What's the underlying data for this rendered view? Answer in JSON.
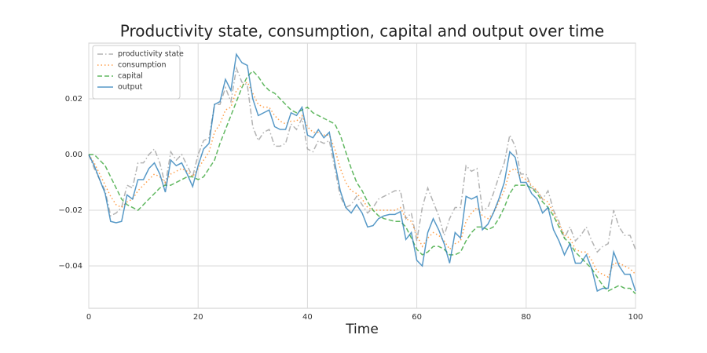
{
  "chart_data": {
    "type": "line",
    "title": "Productivity state, consumption, capital and output over time",
    "x_label": "Time",
    "x": [
      0,
      1,
      2,
      3,
      4,
      5,
      6,
      7,
      8,
      9,
      10,
      11,
      12,
      13,
      14,
      15,
      16,
      17,
      18,
      19,
      20,
      21,
      22,
      23,
      24,
      25,
      26,
      27,
      28,
      29,
      30,
      31,
      32,
      33,
      34,
      35,
      36,
      37,
      38,
      39,
      40,
      41,
      42,
      43,
      44,
      45,
      46,
      47,
      48,
      49,
      50,
      51,
      52,
      53,
      54,
      55,
      56,
      57,
      58,
      59,
      60,
      61,
      62,
      63,
      64,
      65,
      66,
      67,
      68,
      69,
      70,
      71,
      72,
      73,
      74,
      75,
      76,
      77,
      78,
      79,
      80,
      81,
      82,
      83,
      84,
      85,
      86,
      87,
      88,
      89,
      90,
      91,
      92,
      93,
      94,
      95,
      96,
      97,
      98,
      99,
      100
    ],
    "series": [
      {
        "name": "productivity state",
        "color": "#999999",
        "linestyle": "dashdot",
        "values": [
          0,
          -0.005,
          -0.009,
          -0.013,
          -0.022,
          -0.021,
          -0.019,
          -0.011,
          -0.012,
          -0.003,
          -0.003,
          0.0,
          0.002,
          -0.003,
          -0.011,
          0.001,
          -0.002,
          0.0,
          -0.004,
          -0.008,
          0.0,
          0.005,
          0.006,
          0.018,
          0.018,
          0.024,
          0.019,
          0.031,
          0.026,
          0.025,
          0.01,
          0.005,
          0.008,
          0.009,
          0.003,
          0.003,
          0.004,
          0.011,
          0.009,
          0.013,
          0.002,
          0.001,
          0.005,
          0.004,
          0.005,
          -0.005,
          -0.015,
          -0.019,
          -0.018,
          -0.015,
          -0.018,
          -0.021,
          -0.019,
          -0.016,
          -0.015,
          -0.014,
          -0.013,
          -0.013,
          -0.023,
          -0.021,
          -0.031,
          -0.019,
          -0.012,
          -0.017,
          -0.022,
          -0.029,
          -0.023,
          -0.019,
          -0.019,
          -0.004,
          -0.006,
          -0.005,
          -0.02,
          -0.019,
          -0.014,
          -0.008,
          -0.003,
          0.007,
          0.003,
          -0.007,
          -0.007,
          -0.012,
          -0.013,
          -0.016,
          -0.013,
          -0.02,
          -0.024,
          -0.03,
          -0.026,
          -0.031,
          -0.029,
          -0.026,
          -0.031,
          -0.035,
          -0.033,
          -0.032,
          -0.02,
          -0.026,
          -0.029,
          -0.029,
          -0.034
        ]
      },
      {
        "name": "consumption",
        "color": "#ff7f0e",
        "linestyle": "dotted",
        "values": [
          0,
          -0.003,
          -0.007,
          -0.011,
          -0.015,
          -0.018,
          -0.019,
          -0.017,
          -0.016,
          -0.013,
          -0.011,
          -0.009,
          -0.007,
          -0.008,
          -0.01,
          -0.007,
          -0.006,
          -0.005,
          -0.006,
          -0.008,
          -0.005,
          -0.002,
          0.001,
          0.008,
          0.011,
          0.016,
          0.017,
          0.023,
          0.025,
          0.026,
          0.022,
          0.018,
          0.017,
          0.017,
          0.014,
          0.012,
          0.011,
          0.012,
          0.012,
          0.014,
          0.01,
          0.008,
          0.008,
          0.007,
          0.007,
          0.002,
          -0.005,
          -0.01,
          -0.013,
          -0.014,
          -0.016,
          -0.019,
          -0.02,
          -0.02,
          -0.02,
          -0.02,
          -0.02,
          -0.019,
          -0.023,
          -0.024,
          -0.029,
          -0.033,
          -0.03,
          -0.028,
          -0.029,
          -0.031,
          -0.034,
          -0.032,
          -0.031,
          -0.024,
          -0.021,
          -0.019,
          -0.022,
          -0.023,
          -0.021,
          -0.017,
          -0.013,
          -0.006,
          -0.005,
          -0.008,
          -0.009,
          -0.011,
          -0.013,
          -0.016,
          -0.017,
          -0.021,
          -0.025,
          -0.029,
          -0.03,
          -0.034,
          -0.035,
          -0.035,
          -0.038,
          -0.042,
          -0.043,
          -0.044,
          -0.039,
          -0.039,
          -0.04,
          -0.041,
          -0.043
        ]
      },
      {
        "name": "capital",
        "color": "#2ca02c",
        "linestyle": "dashed",
        "values": [
          0,
          0.0,
          -0.002,
          -0.004,
          -0.008,
          -0.012,
          -0.016,
          -0.018,
          -0.019,
          -0.02,
          -0.018,
          -0.016,
          -0.014,
          -0.012,
          -0.011,
          -0.011,
          -0.01,
          -0.009,
          -0.008,
          -0.008,
          -0.009,
          -0.008,
          -0.005,
          -0.002,
          0.004,
          0.009,
          0.014,
          0.019,
          0.024,
          0.028,
          0.03,
          0.028,
          0.025,
          0.023,
          0.022,
          0.02,
          0.018,
          0.016,
          0.015,
          0.016,
          0.017,
          0.015,
          0.014,
          0.013,
          0.012,
          0.011,
          0.007,
          0.001,
          -0.005,
          -0.01,
          -0.013,
          -0.017,
          -0.02,
          -0.022,
          -0.023,
          -0.0235,
          -0.024,
          -0.024,
          -0.026,
          -0.03,
          -0.034,
          -0.036,
          -0.035,
          -0.033,
          -0.033,
          -0.034,
          -0.036,
          -0.036,
          -0.035,
          -0.031,
          -0.028,
          -0.026,
          -0.026,
          -0.027,
          -0.026,
          -0.023,
          -0.019,
          -0.014,
          -0.011,
          -0.011,
          -0.011,
          -0.012,
          -0.014,
          -0.017,
          -0.019,
          -0.022,
          -0.026,
          -0.03,
          -0.032,
          -0.035,
          -0.037,
          -0.039,
          -0.041,
          -0.044,
          -0.047,
          -0.049,
          -0.048,
          -0.047,
          -0.048,
          -0.048,
          -0.05
        ]
      },
      {
        "name": "output",
        "color": "#1f77b4",
        "linestyle": "solid",
        "values": [
          0,
          -0.004,
          -0.009,
          -0.014,
          -0.024,
          -0.0245,
          -0.024,
          -0.0145,
          -0.016,
          -0.009,
          -0.009,
          -0.005,
          -0.003,
          -0.007,
          -0.0135,
          -0.002,
          -0.004,
          -0.003,
          -0.007,
          -0.0115,
          -0.004,
          0.002,
          0.004,
          0.018,
          0.019,
          0.027,
          0.023,
          0.036,
          0.033,
          0.032,
          0.02,
          0.014,
          0.015,
          0.016,
          0.01,
          0.009,
          0.009,
          0.015,
          0.014,
          0.017,
          0.007,
          0.006,
          0.009,
          0.006,
          0.008,
          -0.003,
          -0.013,
          -0.019,
          -0.021,
          -0.018,
          -0.021,
          -0.026,
          -0.0255,
          -0.023,
          -0.022,
          -0.0215,
          -0.0215,
          -0.0205,
          -0.0305,
          -0.028,
          -0.038,
          -0.04,
          -0.028,
          -0.023,
          -0.027,
          -0.032,
          -0.039,
          -0.028,
          -0.03,
          -0.015,
          -0.016,
          -0.015,
          -0.027,
          -0.025,
          -0.021,
          -0.016,
          -0.01,
          0.001,
          -0.001,
          -0.01,
          -0.01,
          -0.014,
          -0.016,
          -0.021,
          -0.019,
          -0.027,
          -0.031,
          -0.036,
          -0.032,
          -0.039,
          -0.039,
          -0.036,
          -0.041,
          -0.049,
          -0.048,
          -0.048,
          -0.035,
          -0.04,
          -0.043,
          -0.043,
          -0.049
        ]
      }
    ],
    "xlim": [
      0,
      100
    ],
    "xticks": [
      0,
      20,
      40,
      60,
      80,
      100
    ],
    "ylim": [
      -0.0552,
      0.04
    ],
    "yticks": [
      {
        "value": -0.04,
        "label": "−0.04"
      },
      {
        "value": -0.02,
        "label": "−0.02"
      },
      {
        "value": 0,
        "label": "0.00"
      },
      {
        "value": 0.02,
        "label": "0.02"
      }
    ],
    "grid": true,
    "legend": "upper left"
  }
}
